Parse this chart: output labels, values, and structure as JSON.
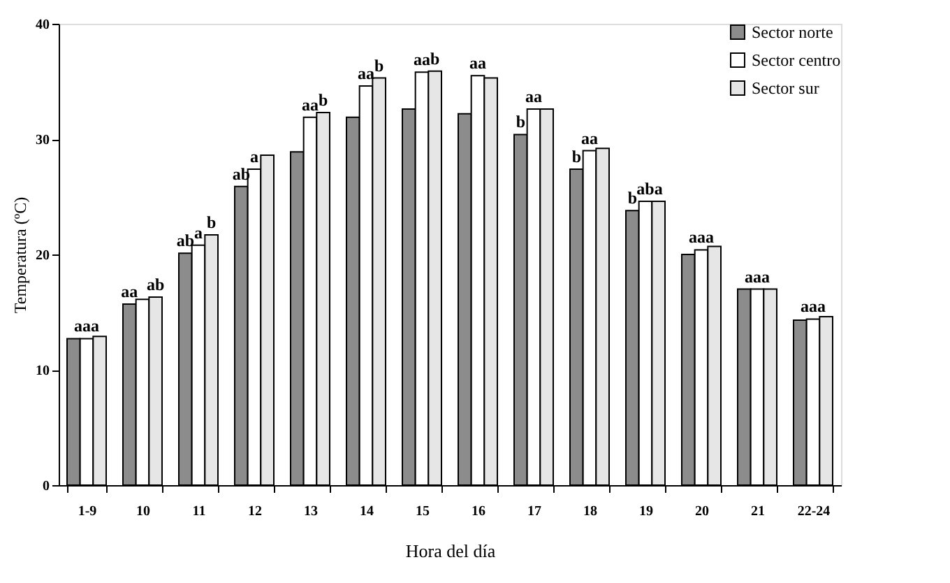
{
  "chart_data": {
    "type": "bar",
    "xlabel": "Hora del día",
    "ylabel": "Temperatura (ºC)",
    "categories": [
      "1-9",
      "10",
      "11",
      "12",
      "13",
      "14",
      "15",
      "16",
      "17",
      "18",
      "19",
      "20",
      "21",
      "22-24"
    ],
    "series": [
      {
        "name": "Sector norte",
        "color": "#8c8c8c",
        "values": [
          12.7,
          15.7,
          20.1,
          25.9,
          28.9,
          31.9,
          32.6,
          32.2,
          30.4,
          27.4,
          23.8,
          20.0,
          17.0,
          14.3
        ],
        "value_labels": [
          null,
          "aa",
          "ab",
          "ab",
          null,
          null,
          null,
          null,
          "b",
          "b",
          "b",
          null,
          null,
          null
        ]
      },
      {
        "name": "Sector centro",
        "color": "#ffffff",
        "values": [
          12.7,
          16.1,
          20.8,
          27.4,
          31.9,
          34.6,
          35.8,
          35.5,
          32.6,
          29.0,
          24.6,
          20.4,
          17.0,
          14.4
        ],
        "value_labels": [
          "aaa",
          null,
          "a",
          "a",
          "aa",
          "aa",
          "aa",
          "aa",
          "aa",
          "aa",
          "ab",
          "aaa",
          "aaa",
          "aaa"
        ]
      },
      {
        "name": "Sector sur",
        "color": "#e6e6e6",
        "values": [
          12.9,
          16.3,
          21.7,
          28.6,
          32.3,
          35.3,
          35.9,
          35.3,
          32.6,
          29.2,
          24.6,
          20.7,
          17.0,
          14.6
        ],
        "value_labels": [
          null,
          "ab",
          "b",
          null,
          "b",
          "b",
          "b",
          null,
          null,
          null,
          "a",
          null,
          null,
          null
        ]
      }
    ],
    "ylim": [
      0,
      40
    ],
    "yticks": [
      0,
      10,
      20,
      30,
      40
    ],
    "grid": false,
    "legend": "top right"
  }
}
